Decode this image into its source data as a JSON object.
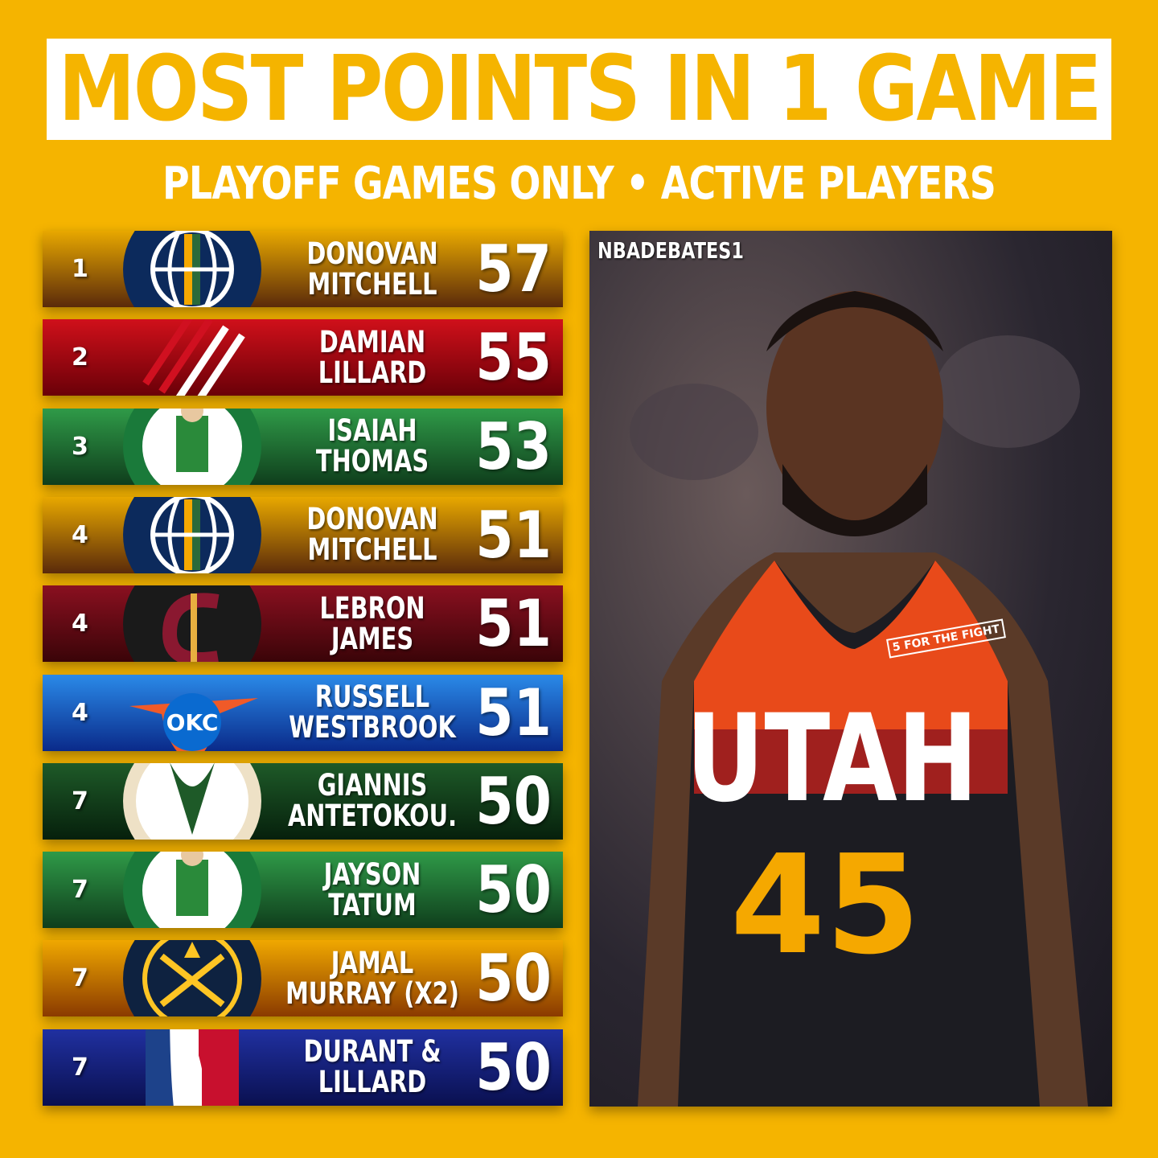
{
  "title": "MOST POINTS IN 1 GAME",
  "subtitle": "PLAYOFF GAMES ONLY • ACTIVE PLAYERS",
  "watermark": "NBADEBATES1",
  "photo": {
    "jersey_team": "UTAH",
    "jersey_number": "45",
    "patch": "5 FOR THE FIGHT"
  },
  "rows": [
    {
      "rank": "1",
      "line1": "DONOVAN",
      "line2": "MITCHELL",
      "points": "57",
      "team": "utah-jazz",
      "colors": [
        "#e8a800",
        "#5a2a0a"
      ]
    },
    {
      "rank": "2",
      "line1": "DAMIAN",
      "line2": "LILLARD",
      "points": "55",
      "team": "portland-trail-blazers",
      "colors": [
        "#d0101a",
        "#6a0008"
      ]
    },
    {
      "rank": "3",
      "line1": "ISAIAH",
      "line2": "THOMAS",
      "points": "53",
      "team": "boston-celtics",
      "colors": [
        "#2f9a48",
        "#0f3e1c"
      ]
    },
    {
      "rank": "4",
      "line1": "DONOVAN",
      "line2": "MITCHELL",
      "points": "51",
      "team": "utah-jazz",
      "colors": [
        "#e8a800",
        "#5a2a0a"
      ]
    },
    {
      "rank": "4",
      "line1": "LEBRON",
      "line2": "JAMES",
      "points": "51",
      "team": "cleveland-cavaliers",
      "colors": [
        "#8a1020",
        "#3a0408"
      ]
    },
    {
      "rank": "4",
      "line1": "RUSSELL",
      "line2": "WESTBROOK",
      "points": "51",
      "team": "okc-thunder",
      "colors": [
        "#2a8ae8",
        "#0a2a8a"
      ]
    },
    {
      "rank": "7",
      "line1": "GIANNIS",
      "line2": "ANTETOKOU.",
      "points": "50",
      "team": "milwaukee-bucks",
      "colors": [
        "#1e5a28",
        "#06200c"
      ]
    },
    {
      "rank": "7",
      "line1": "JAYSON",
      "line2": "TATUM",
      "points": "50",
      "team": "boston-celtics",
      "colors": [
        "#2f9a48",
        "#0f3e1c"
      ]
    },
    {
      "rank": "7",
      "line1": "JAMAL",
      "line2": "MURRAY (X2)",
      "points": "50",
      "team": "denver-nuggets",
      "colors": [
        "#f0a800",
        "#8a3a00"
      ]
    },
    {
      "rank": "7",
      "line1": "DURANT &",
      "line2": "LILLARD",
      "points": "50",
      "team": "nba",
      "colors": [
        "#2030a0",
        "#0a1050"
      ]
    }
  ]
}
